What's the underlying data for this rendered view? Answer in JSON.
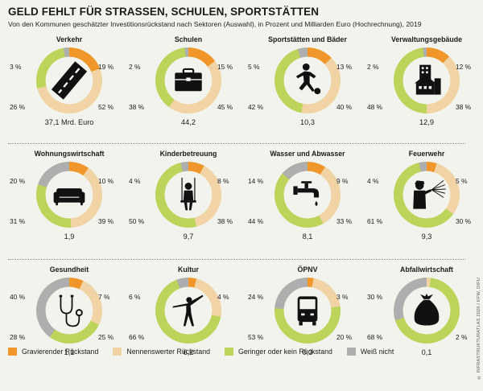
{
  "title": "GELD FEHLT FÜR STRASSEN, SCHULEN, SPORTSTÄTTEN",
  "subtitle": "Von den Kommunen geschätzter Investitionsrückstand nach Sektoren (Auswahl), in Prozent und Milliarden Euro (Hochrechnung), 2019",
  "credit": "© INFRASTRUKTURATLAS 2020 / KFW, DIFU",
  "colors": {
    "gravierend": "#f0962a",
    "nennenswert": "#f2d3a6",
    "gering": "#bcd45a",
    "weiss_nicht": "#aeaeae"
  },
  "legend": [
    {
      "label": "Gravierender Rückstand",
      "color": "#f0962a"
    },
    {
      "label": "Nennenswerter Rückstand",
      "color": "#f2d3a6"
    },
    {
      "label": "Geringer oder kein Rückstand",
      "color": "#bcd45a"
    },
    {
      "label": "Weiß nicht",
      "color": "#aeaeae"
    }
  ],
  "chart_data": {
    "type": "pie",
    "variant": "donut",
    "series_order": [
      "Gravierender Rückstand",
      "Nennenswerter Rückstand",
      "Geringer oder kein Rückstand",
      "Weiß nicht"
    ],
    "charts": [
      {
        "name": "Verkehr",
        "icon": "road-icon",
        "values": [
          19,
          52,
          26,
          3
        ],
        "labels": [
          "19 %",
          "52 %",
          "26 %",
          "3 %"
        ],
        "total": "37,1 Mrd. Euro"
      },
      {
        "name": "Schulen",
        "icon": "briefcase-icon",
        "values": [
          15,
          45,
          38,
          2
        ],
        "labels": [
          "15 %",
          "45 %",
          "38 %",
          "2 %"
        ],
        "total": "44,2"
      },
      {
        "name": "Sportstätten und Bäder",
        "icon": "soccer-player-icon",
        "values": [
          13,
          40,
          42,
          5
        ],
        "labels": [
          "13 %",
          "40 %",
          "42 %",
          "5 %"
        ],
        "total": "10,3"
      },
      {
        "name": "Verwaltungsgebäude",
        "icon": "buildings-icon",
        "values": [
          12,
          38,
          48,
          2
        ],
        "labels": [
          "12 %",
          "38 %",
          "48 %",
          "2 %"
        ],
        "total": "12,9"
      },
      {
        "name": "Wohnungswirtschaft",
        "icon": "sofa-icon",
        "values": [
          10,
          39,
          31,
          20
        ],
        "labels": [
          "10 %",
          "39 %",
          "31 %",
          "20 %"
        ],
        "total": "1,9"
      },
      {
        "name": "Kinderbetreuung",
        "icon": "swing-child-icon",
        "values": [
          8,
          38,
          50,
          4
        ],
        "labels": [
          "8 %",
          "38 %",
          "50 %",
          "4 %"
        ],
        "total": "9,7"
      },
      {
        "name": "Wasser und Abwasser",
        "icon": "faucet-icon",
        "values": [
          9,
          33,
          44,
          14
        ],
        "labels": [
          "9 %",
          "33 %",
          "44 %",
          "14 %"
        ],
        "total": "8,1"
      },
      {
        "name": "Feuerwehr",
        "icon": "firefighter-icon",
        "values": [
          5,
          30,
          61,
          4
        ],
        "labels": [
          "5 %",
          "30 %",
          "61 %",
          "4 %"
        ],
        "total": "9,3"
      },
      {
        "name": "Gesundheit",
        "icon": "stethoscope-icon",
        "values": [
          7,
          25,
          28,
          40
        ],
        "labels": [
          "7 %",
          "25 %",
          "28 %",
          "40 %"
        ],
        "total": "1,1"
      },
      {
        "name": "Kultur",
        "icon": "dancer-icon",
        "values": [
          4,
          24,
          66,
          6
        ],
        "labels": [
          "4 %",
          "",
          "66 %",
          "6 %"
        ],
        "total": "6,2"
      },
      {
        "name": "ÖPNV",
        "icon": "bus-icon",
        "values": [
          3,
          20,
          53,
          24
        ],
        "labels": [
          "3 %",
          "20 %",
          "53 %",
          "24 %"
        ],
        "total": "0,3"
      },
      {
        "name": "Abfallwirtschaft",
        "icon": "garbage-bag-icon",
        "values": [
          0,
          2,
          68,
          30
        ],
        "labels": [
          "",
          "2 %",
          "68 %",
          "30 %"
        ],
        "total": "0,1"
      }
    ]
  }
}
